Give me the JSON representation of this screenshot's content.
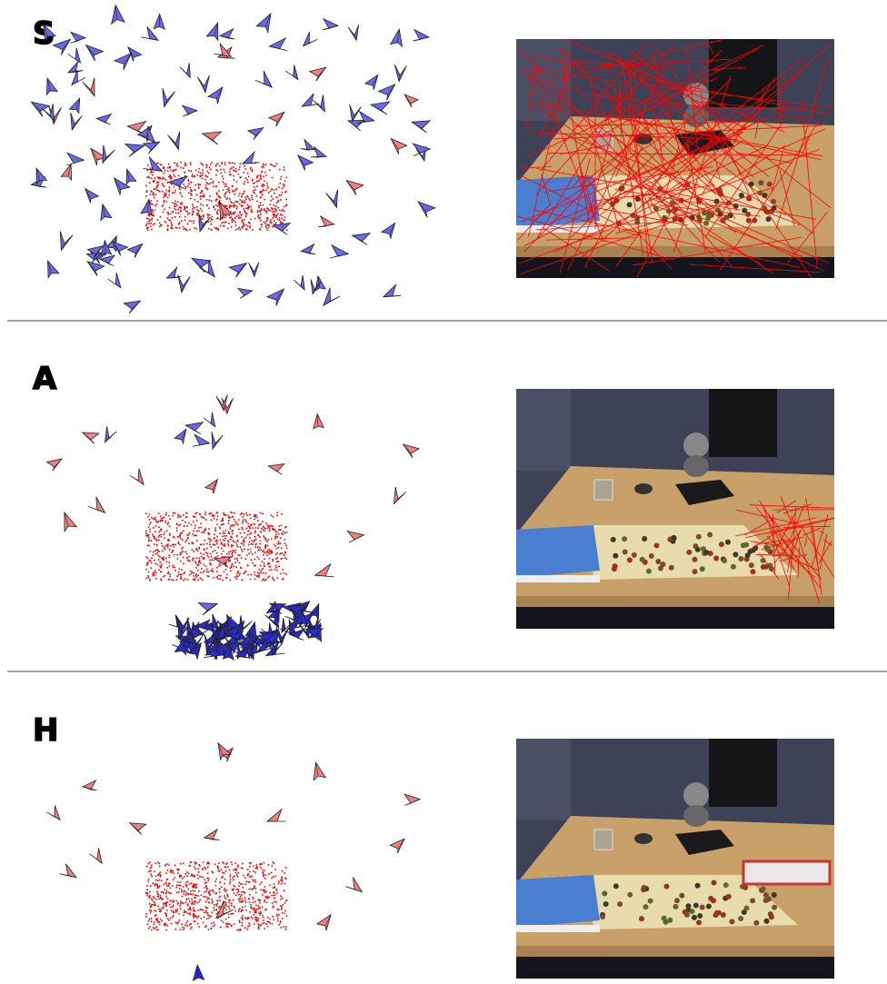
{
  "panels": [
    {
      "label": "S"
    },
    {
      "label": "A"
    },
    {
      "label": "H"
    }
  ]
}
